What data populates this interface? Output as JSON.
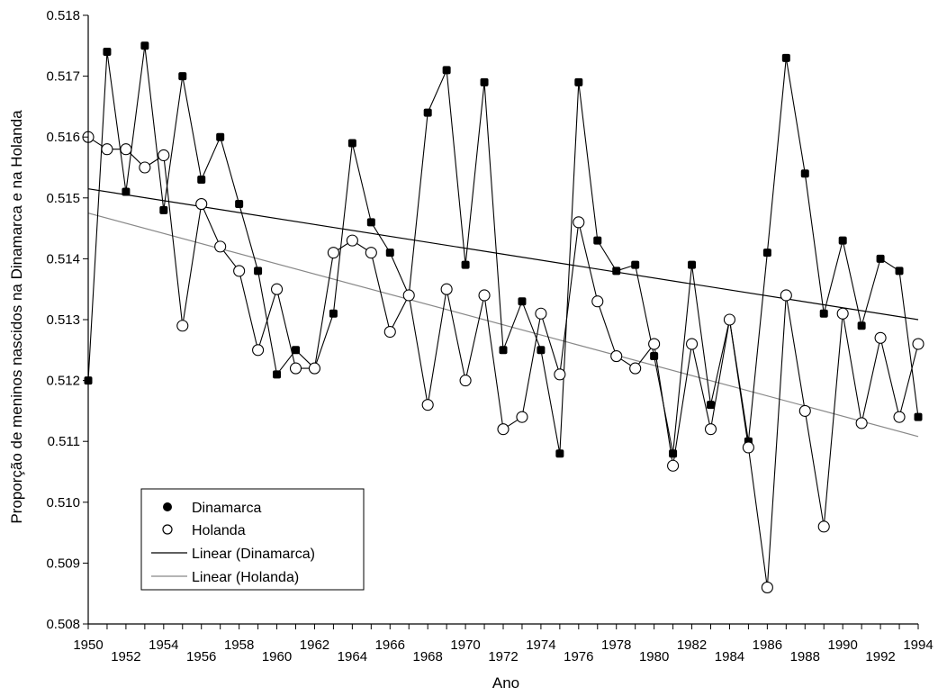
{
  "chart_data": {
    "type": "line",
    "title": "",
    "xlabel": "Ano",
    "ylabel": "Proporção de meninos nascidos na Dinamarca e na Holanda",
    "xlim": [
      1950,
      1994
    ],
    "ylim": [
      0.508,
      0.518
    ],
    "y_ticks": [
      "0.508",
      "0.509",
      "0.510",
      "0.511",
      "0.512",
      "0.513",
      "0.514",
      "0.515",
      "0.516",
      "0.517",
      "0.518"
    ],
    "x_ticks": [
      "1950",
      "1952",
      "1954",
      "1956",
      "1958",
      "1960",
      "1962",
      "1964",
      "1966",
      "1968",
      "1970",
      "1972",
      "1974",
      "1976",
      "1978",
      "1980",
      "1982",
      "1984",
      "1986",
      "1988",
      "1990",
      "1992",
      "1994"
    ],
    "grid": false,
    "legend_position": "bottom-left",
    "x": [
      1950,
      1951,
      1952,
      1953,
      1954,
      1955,
      1956,
      1957,
      1958,
      1959,
      1960,
      1961,
      1962,
      1963,
      1964,
      1965,
      1966,
      1967,
      1968,
      1969,
      1970,
      1971,
      1972,
      1973,
      1974,
      1975,
      1976,
      1977,
      1978,
      1979,
      1980,
      1981,
      1982,
      1983,
      1984,
      1985,
      1986,
      1987,
      1988,
      1989,
      1990,
      1991,
      1992,
      1993,
      1994
    ],
    "series": [
      {
        "name": "Dinamarca",
        "marker": "filled-circle",
        "values": [
          0.512,
          0.5174,
          0.5151,
          0.5175,
          0.5148,
          0.517,
          0.5153,
          0.516,
          0.5149,
          0.5138,
          0.5121,
          0.5125,
          0.5122,
          0.5131,
          0.5159,
          0.5146,
          0.5141,
          0.5134,
          0.5164,
          0.5171,
          0.5139,
          0.5169,
          0.5125,
          0.5133,
          0.5125,
          0.5108,
          0.5169,
          0.5143,
          0.5138,
          0.5139,
          0.5124,
          0.5108,
          0.5139,
          0.5116,
          0.513,
          0.511,
          0.5141,
          0.5173,
          0.5154,
          0.5131,
          0.5143,
          0.5129,
          0.514,
          0.5138,
          0.5114
        ]
      },
      {
        "name": "Holanda",
        "marker": "open-circle",
        "values": [
          0.516,
          0.5158,
          0.5158,
          0.5155,
          0.5157,
          0.5129,
          0.5149,
          0.5142,
          0.5138,
          0.5125,
          0.5135,
          0.5122,
          0.5122,
          0.5141,
          0.5143,
          0.5141,
          0.5128,
          0.5134,
          0.5116,
          0.5135,
          0.512,
          0.5134,
          0.5112,
          0.5114,
          0.5131,
          0.5121,
          0.5146,
          0.5133,
          0.5124,
          0.5122,
          0.5126,
          0.5106,
          0.5126,
          0.5112,
          0.513,
          0.5109,
          0.5086,
          0.5134,
          0.5115,
          0.5096,
          0.5131,
          0.5113,
          0.5127,
          0.5114,
          0.5126
        ]
      },
      {
        "name": "Linear (Dinamarca)",
        "style": "trendline",
        "color": "#000000",
        "x": [
          1950,
          1994
        ],
        "values": [
          0.51515,
          0.513
        ]
      },
      {
        "name": "Linear (Holanda)",
        "style": "trendline",
        "color": "#888888",
        "x": [
          1950,
          1994
        ],
        "values": [
          0.51475,
          0.51108
        ]
      }
    ]
  }
}
